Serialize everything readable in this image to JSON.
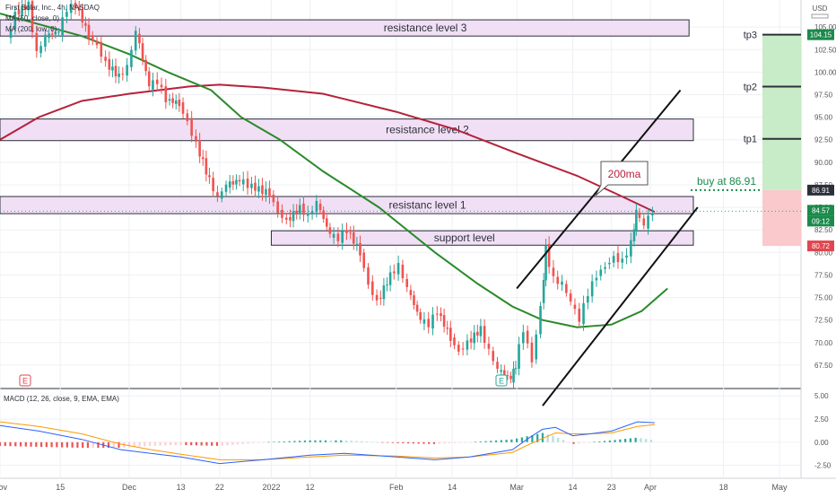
{
  "header": {
    "symbol_line": "First Solar, Inc., 4h, NASDAQ",
    "ma1": "MA (50, close, 0)",
    "ma2": "MA (200, low, 0)",
    "currency": "USD"
  },
  "zones": [
    {
      "label": "resistance level 3",
      "lo": 104.0,
      "hi": 105.8,
      "end_date": "2022-04-10"
    },
    {
      "label": "resistance level 2",
      "lo": 92.4,
      "hi": 94.8,
      "end_date": "2022-04-11"
    },
    {
      "label": "resistanc level 1",
      "lo": 84.3,
      "hi": 86.2,
      "end_date": "2022-04-11"
    },
    {
      "label": "support level",
      "lo": 80.8,
      "hi": 82.4,
      "end_date": "2022-04-11",
      "start_date": "2022-01-03"
    }
  ],
  "annotations": {
    "callout": "200ma",
    "buy": "buy at 86.91",
    "targets": [
      {
        "label": "tp3",
        "value": 104.15
      },
      {
        "label": "tp2",
        "value": 98.4
      },
      {
        "label": "tp1",
        "value": 92.6
      }
    ],
    "event_markers": [
      "E",
      "E"
    ]
  },
  "price_tags": [
    {
      "value": "104.15",
      "color": "#1b8a4b"
    },
    {
      "value": "86.91",
      "color": "#2b2f3a"
    },
    {
      "value": "84.57",
      "color": "#1b8a4b"
    },
    {
      "value": "09:12",
      "color": "#1b8a4b"
    },
    {
      "value": "80.72",
      "color": "#e0464f"
    }
  ],
  "macd_title": "MACD (12, 26, close, 9, EMA, EMA)",
  "colors": {
    "ma50": "#2a8a2a",
    "ma200": "#b5223b",
    "zone_fill": "#f1e0f5",
    "up": "#26a69a",
    "down": "#ef5350",
    "profit": "#c8ebc8",
    "loss": "#f9c9cc",
    "macd_line": "#2962ff",
    "signal_line": "#ff9800"
  },
  "chart_data": [
    {
      "type": "candlestick",
      "title": "First Solar, Inc., 4h, NASDAQ",
      "ylim": [
        65.0,
        108.0
      ],
      "yticks": [
        67.5,
        70.0,
        72.5,
        75.0,
        77.5,
        80.0,
        82.5,
        85.0,
        87.5,
        90.0,
        92.5,
        95.0,
        97.5,
        100.0,
        102.5,
        105.0
      ],
      "xlim": [
        "2021-11-01",
        "2022-05-06"
      ],
      "xticks": [
        {
          "label": "Nov",
          "date": "2021-11-01"
        },
        {
          "label": "15",
          "date": "2021-11-15"
        },
        {
          "label": "Dec",
          "date": "2021-12-01"
        },
        {
          "label": "13",
          "date": "2021-12-13"
        },
        {
          "label": "22",
          "date": "2021-12-22"
        },
        {
          "label": "2022",
          "date": "2022-01-03"
        },
        {
          "label": "12",
          "date": "2022-01-12"
        },
        {
          "label": "Feb",
          "date": "2022-02-01"
        },
        {
          "label": "14",
          "date": "2022-02-14"
        },
        {
          "label": "Mar",
          "date": "2022-03-01"
        },
        {
          "label": "14",
          "date": "2022-03-14"
        },
        {
          "label": "23",
          "date": "2022-03-23"
        },
        {
          "label": "Apr",
          "date": "2022-04-01"
        },
        {
          "label": "18",
          "date": "2022-04-18"
        },
        {
          "label": "May",
          "date": "2022-05-01"
        }
      ],
      "price_path": [
        [
          "2021-11-03",
          103.5
        ],
        [
          "2021-11-05",
          106.5
        ],
        [
          "2021-11-08",
          107.5
        ],
        [
          "2021-11-10",
          102.0
        ],
        [
          "2021-11-12",
          104.0
        ],
        [
          "2021-11-15",
          104.5
        ],
        [
          "2021-11-17",
          107.0
        ],
        [
          "2021-11-19",
          107.5
        ],
        [
          "2021-11-22",
          104.0
        ],
        [
          "2021-11-24",
          103.0
        ],
        [
          "2021-11-26",
          101.0
        ],
        [
          "2021-11-29",
          99.5
        ],
        [
          "2021-12-01",
          100.5
        ],
        [
          "2021-12-03",
          104.5
        ],
        [
          "2021-12-06",
          98.5
        ],
        [
          "2021-12-08",
          99.0
        ],
        [
          "2021-12-10",
          97.0
        ],
        [
          "2021-12-13",
          96.5
        ],
        [
          "2021-12-15",
          94.5
        ],
        [
          "2021-12-17",
          92.0
        ],
        [
          "2021-12-20",
          88.0
        ],
        [
          "2021-12-22",
          86.0
        ],
        [
          "2021-12-24",
          87.5
        ],
        [
          "2021-12-27",
          88.0
        ],
        [
          "2021-12-29",
          87.5
        ],
        [
          "2022-01-03",
          86.5
        ],
        [
          "2022-01-05",
          84.5
        ],
        [
          "2022-01-07",
          83.5
        ],
        [
          "2022-01-10",
          85.0
        ],
        [
          "2022-01-12",
          84.0
        ],
        [
          "2022-01-14",
          85.5
        ],
        [
          "2022-01-17",
          82.0
        ],
        [
          "2022-01-19",
          81.5
        ],
        [
          "2022-01-21",
          82.5
        ],
        [
          "2022-01-24",
          80.0
        ],
        [
          "2022-01-26",
          76.5
        ],
        [
          "2022-01-28",
          74.5
        ],
        [
          "2022-01-31",
          77.5
        ],
        [
          "2022-02-02",
          78.5
        ],
        [
          "2022-02-04",
          76.0
        ],
        [
          "2022-02-07",
          72.5
        ],
        [
          "2022-02-09",
          72.0
        ],
        [
          "2022-02-11",
          73.5
        ],
        [
          "2022-02-14",
          70.5
        ],
        [
          "2022-02-16",
          69.0
        ],
        [
          "2022-02-18",
          70.0
        ],
        [
          "2022-02-21",
          71.5
        ],
        [
          "2022-02-23",
          69.0
        ],
        [
          "2022-02-25",
          67.0
        ],
        [
          "2022-02-28",
          66.0
        ],
        [
          "2022-03-01",
          67.5
        ],
        [
          "2022-03-03",
          71.5
        ],
        [
          "2022-03-05",
          68.0
        ],
        [
          "2022-03-07",
          74.0
        ],
        [
          "2022-03-08",
          80.5
        ],
        [
          "2022-03-10",
          77.0
        ],
        [
          "2022-03-12",
          76.5
        ],
        [
          "2022-03-14",
          74.5
        ],
        [
          "2022-03-16",
          72.5
        ],
        [
          "2022-03-18",
          75.5
        ],
        [
          "2022-03-20",
          77.5
        ],
        [
          "2022-03-22",
          78.5
        ],
        [
          "2022-03-24",
          79.5
        ],
        [
          "2022-03-26",
          79.0
        ],
        [
          "2022-03-28",
          81.0
        ],
        [
          "2022-03-29",
          84.5
        ],
        [
          "2022-03-31",
          83.0
        ],
        [
          "2022-04-02",
          84.6
        ]
      ],
      "ma50": [
        [
          "2021-11-01",
          106.5
        ],
        [
          "2021-11-20",
          104.0
        ],
        [
          "2021-12-01",
          102.0
        ],
        [
          "2021-12-10",
          100.0
        ],
        [
          "2021-12-20",
          98.0
        ],
        [
          "2021-12-27",
          95.0
        ],
        [
          "2022-01-05",
          92.5
        ],
        [
          "2022-01-15",
          89.0
        ],
        [
          "2022-01-28",
          85.0
        ],
        [
          "2022-02-10",
          80.0
        ],
        [
          "2022-02-20",
          76.5
        ],
        [
          "2022-02-28",
          74.0
        ],
        [
          "2022-03-07",
          72.5
        ],
        [
          "2022-03-15",
          71.7
        ],
        [
          "2022-03-23",
          72.0
        ],
        [
          "2022-03-30",
          73.5
        ],
        [
          "2022-04-05",
          76.0
        ]
      ],
      "ma200": [
        [
          "2021-11-01",
          92.5
        ],
        [
          "2021-11-10",
          95.0
        ],
        [
          "2021-11-20",
          96.8
        ],
        [
          "2021-12-01",
          97.6
        ],
        [
          "2021-12-15",
          98.4
        ],
        [
          "2021-12-22",
          98.6
        ],
        [
          "2022-01-01",
          98.3
        ],
        [
          "2022-01-15",
          97.6
        ],
        [
          "2022-02-01",
          95.6
        ],
        [
          "2022-02-15",
          93.6
        ],
        [
          "2022-03-01",
          91.0
        ],
        [
          "2022-03-15",
          88.5
        ],
        [
          "2022-03-25",
          86.3
        ],
        [
          "2022-04-02",
          84.5
        ]
      ],
      "channel": {
        "upper": [
          [
            "2022-03-01",
            76.0
          ],
          [
            "2022-04-08",
            98.0
          ]
        ],
        "lower": [
          [
            "2022-03-07",
            63.0
          ],
          [
            "2022-04-12",
            85.0
          ]
        ]
      },
      "last_price": 84.57
    },
    {
      "type": "macd",
      "title": "MACD (12, 26, close, 9, EMA, EMA)",
      "ylim": [
        -3.6,
        5.5
      ],
      "yticks": [
        -2.5,
        0.0,
        2.5,
        5.0
      ],
      "macd": [
        [
          "2021-11-01",
          1.8
        ],
        [
          "2021-11-10",
          1.2
        ],
        [
          "2021-11-20",
          0.3
        ],
        [
          "2021-11-29",
          -0.8
        ],
        [
          "2021-12-06",
          -1.2
        ],
        [
          "2021-12-13",
          -1.6
        ],
        [
          "2021-12-22",
          -2.3
        ],
        [
          "2022-01-01",
          -1.9
        ],
        [
          "2022-01-12",
          -1.4
        ],
        [
          "2022-01-20",
          -1.2
        ],
        [
          "2022-02-01",
          -1.6
        ],
        [
          "2022-02-10",
          -1.9
        ],
        [
          "2022-02-18",
          -1.6
        ],
        [
          "2022-02-28",
          -0.8
        ],
        [
          "2022-03-04",
          0.5
        ],
        [
          "2022-03-07",
          1.4
        ],
        [
          "2022-03-10",
          1.6
        ],
        [
          "2022-03-14",
          0.7
        ],
        [
          "2022-03-18",
          0.9
        ],
        [
          "2022-03-23",
          1.2
        ],
        [
          "2022-03-29",
          2.2
        ],
        [
          "2022-04-02",
          2.1
        ]
      ],
      "signal": [
        [
          "2021-11-01",
          2.2
        ],
        [
          "2021-11-10",
          1.7
        ],
        [
          "2021-11-20",
          0.9
        ],
        [
          "2021-11-29",
          -0.2
        ],
        [
          "2021-12-06",
          -0.8
        ],
        [
          "2021-12-13",
          -1.3
        ],
        [
          "2021-12-22",
          -1.9
        ],
        [
          "2022-01-01",
          -1.9
        ],
        [
          "2022-01-12",
          -1.6
        ],
        [
          "2022-01-20",
          -1.4
        ],
        [
          "2022-02-01",
          -1.5
        ],
        [
          "2022-02-10",
          -1.7
        ],
        [
          "2022-02-18",
          -1.6
        ],
        [
          "2022-02-28",
          -1.1
        ],
        [
          "2022-03-04",
          -0.2
        ],
        [
          "2022-03-07",
          0.4
        ],
        [
          "2022-03-10",
          1.0
        ],
        [
          "2022-03-14",
          0.9
        ],
        [
          "2022-03-18",
          0.9
        ],
        [
          "2022-03-23",
          1.0
        ],
        [
          "2022-03-29",
          1.7
        ],
        [
          "2022-04-02",
          1.9
        ]
      ]
    }
  ]
}
